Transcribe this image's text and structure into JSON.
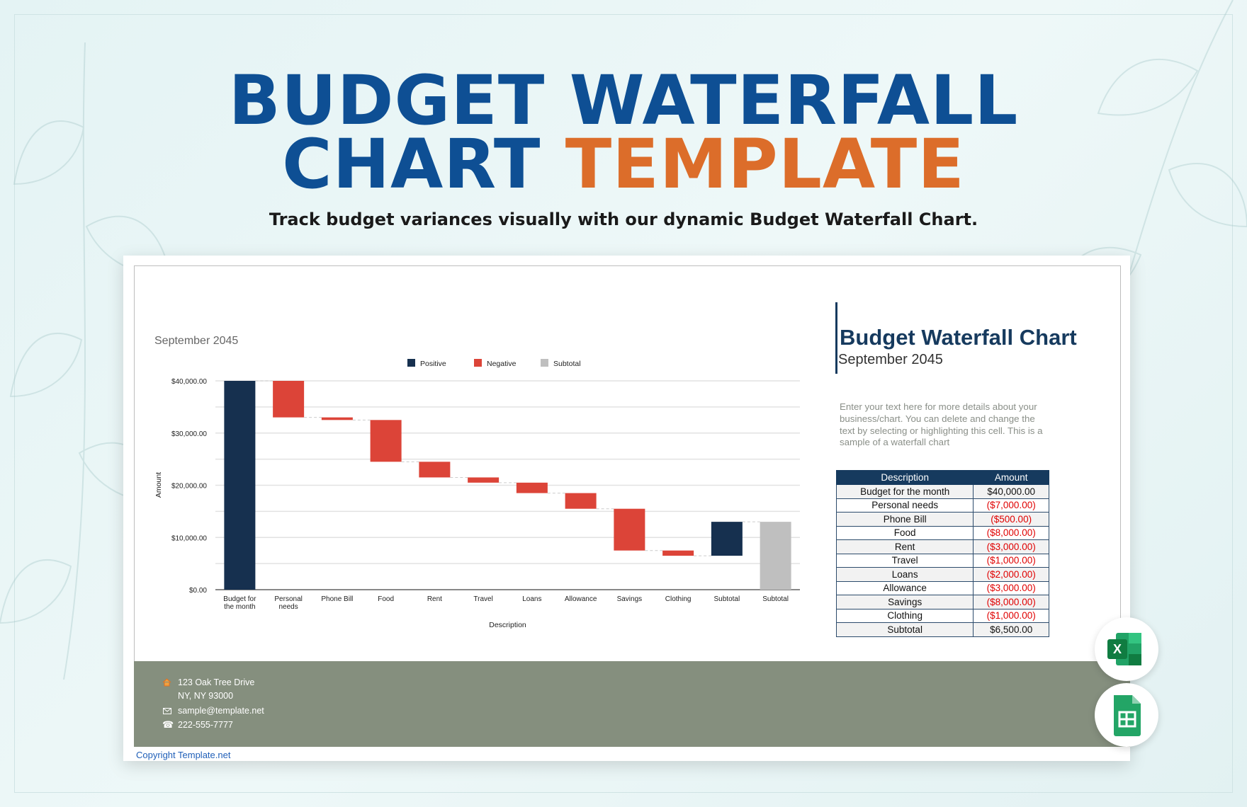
{
  "header": {
    "title_line1": "BUDGET WATERFALL",
    "title_line2_a": "CHART ",
    "title_line2_b": "TEMPLATE",
    "subtitle": "Track budget variances visually with our dynamic Budget Waterfall Chart.",
    "colors": {
      "blue": "#0e4f94",
      "orange": "#dc6d2a"
    }
  },
  "chart_data": {
    "type": "bar",
    "subtype": "waterfall",
    "title": "September 2045",
    "xlabel": "Description",
    "ylabel": "Amount",
    "ylim": [
      0,
      40000
    ],
    "yticks": [
      "$0.00",
      "$10,000.00",
      "$20,000.00",
      "$30,000.00",
      "$40,000.00"
    ],
    "ytick_values": [
      0,
      10000,
      20000,
      30000,
      40000
    ],
    "grid": true,
    "legend_position": "top",
    "legend": [
      {
        "name": "Positive",
        "color": "#16304f"
      },
      {
        "name": "Negative",
        "color": "#dc4438"
      },
      {
        "name": "Subtotal",
        "color": "#bfbfbf"
      }
    ],
    "categories": [
      "Budget for the month",
      "Personal needs",
      "Phone Bill",
      "Food",
      "Rent",
      "Travel",
      "Loans",
      "Allowance",
      "Savings",
      "Clothing",
      "Subtotal",
      "Subtotal"
    ],
    "category_labels": [
      [
        "Budget for",
        "the month"
      ],
      [
        "Personal",
        "needs"
      ],
      [
        "Phone Bill"
      ],
      [
        "Food"
      ],
      [
        "Rent"
      ],
      [
        "Travel"
      ],
      [
        "Loans"
      ],
      [
        "Allowance"
      ],
      [
        "Savings"
      ],
      [
        "Clothing"
      ],
      [
        "Subtotal"
      ],
      [
        "Subtotal"
      ]
    ],
    "bars": [
      {
        "kind": "Positive",
        "start": 0,
        "end": 40000
      },
      {
        "kind": "Negative",
        "start": 40000,
        "end": 33000
      },
      {
        "kind": "Negative",
        "start": 33000,
        "end": 32500
      },
      {
        "kind": "Negative",
        "start": 32500,
        "end": 24500
      },
      {
        "kind": "Negative",
        "start": 24500,
        "end": 21500
      },
      {
        "kind": "Negative",
        "start": 21500,
        "end": 20500
      },
      {
        "kind": "Negative",
        "start": 20500,
        "end": 18500
      },
      {
        "kind": "Negative",
        "start": 18500,
        "end": 15500
      },
      {
        "kind": "Negative",
        "start": 15500,
        "end": 7500
      },
      {
        "kind": "Negative",
        "start": 7500,
        "end": 6500
      },
      {
        "kind": "Positive",
        "start": 6500,
        "end": 13000
      },
      {
        "kind": "Subtotal",
        "start": 0,
        "end": 13000
      }
    ]
  },
  "panel": {
    "heading": "Budget Waterfall Chart",
    "subheading": "September 2045",
    "description": "Enter your text here for more details about your business/chart. You can delete and change the text by selecting or highlighting this cell. This is a sample of a waterfall chart",
    "table": {
      "headers": [
        "Description",
        "Amount"
      ],
      "rows": [
        [
          "Budget for the month",
          "$40,000.00"
        ],
        [
          "Personal needs",
          "($7,000.00)"
        ],
        [
          "Phone Bill",
          "($500.00)"
        ],
        [
          "Food",
          "($8,000.00)"
        ],
        [
          "Rent",
          "($3,000.00)"
        ],
        [
          "Travel",
          "($1,000.00)"
        ],
        [
          "Loans",
          "($2,000.00)"
        ],
        [
          "Allowance",
          "($3,000.00)"
        ],
        [
          "Savings",
          "($8,000.00)"
        ],
        [
          "Clothing",
          "($1,000.00)"
        ],
        [
          "Subtotal",
          "$6,500.00"
        ]
      ]
    }
  },
  "footer": {
    "address_line1": "123 Oak Tree Drive",
    "address_line2": "NY, NY 93000",
    "email": "sample@template.net",
    "phone": "222-555-7777",
    "copyright": "Copyright Template.net"
  },
  "apps": {
    "excel_letter": "X"
  }
}
